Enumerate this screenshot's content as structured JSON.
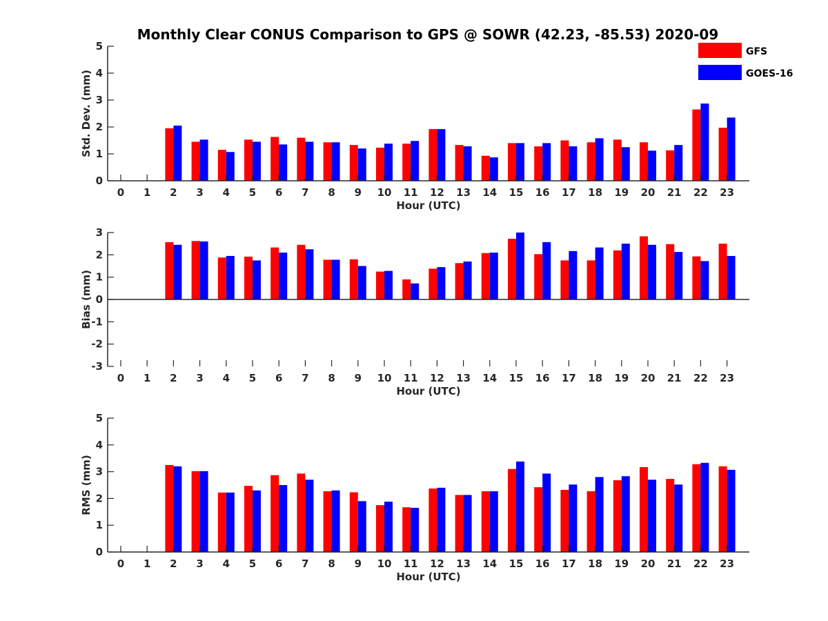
{
  "figure": {
    "title": "Monthly Clear CONUS Comparison to GPS @ SOWR (42.23, -85.53) 2020-09",
    "legend": [
      {
        "name": "GFS",
        "color": "#ff0000"
      },
      {
        "name": "GOES-16",
        "color": "#0000ff"
      }
    ]
  },
  "chart_data": [
    {
      "type": "bar",
      "xlabel": "Hour (UTC)",
      "ylabel": "Std. Dev. (mm)",
      "ylim": [
        0,
        5
      ],
      "yticks": [
        0,
        1,
        2,
        3,
        4,
        5
      ],
      "categories": [
        "0",
        "1",
        "2",
        "3",
        "4",
        "5",
        "6",
        "7",
        "8",
        "9",
        "10",
        "11",
        "12",
        "13",
        "14",
        "15",
        "16",
        "17",
        "18",
        "19",
        "20",
        "21",
        "22",
        "23"
      ],
      "series": [
        {
          "name": "GFS",
          "color": "#ff0000",
          "values": [
            null,
            null,
            1.95,
            1.45,
            1.15,
            1.53,
            1.63,
            1.6,
            1.43,
            1.33,
            1.23,
            1.38,
            1.92,
            1.33,
            0.93,
            1.4,
            1.28,
            1.5,
            1.43,
            1.53,
            1.43,
            1.13,
            2.65,
            1.97
          ]
        },
        {
          "name": "GOES-16",
          "color": "#0000ff",
          "values": [
            null,
            null,
            2.05,
            1.53,
            1.07,
            1.45,
            1.35,
            1.45,
            1.43,
            1.2,
            1.38,
            1.48,
            1.92,
            1.28,
            0.87,
            1.4,
            1.4,
            1.28,
            1.58,
            1.25,
            1.12,
            1.33,
            2.87,
            2.35
          ]
        }
      ],
      "grid": false
    },
    {
      "type": "bar",
      "xlabel": "Hour (UTC)",
      "ylabel": "Bias (mm)",
      "ylim": [
        -3,
        3
      ],
      "yticks": [
        -3,
        -2,
        -1,
        0,
        1,
        2,
        3
      ],
      "categories": [
        "0",
        "1",
        "2",
        "3",
        "4",
        "5",
        "6",
        "7",
        "8",
        "9",
        "10",
        "11",
        "12",
        "13",
        "14",
        "15",
        "16",
        "17",
        "18",
        "19",
        "20",
        "21",
        "22",
        "23"
      ],
      "series": [
        {
          "name": "GFS",
          "color": "#ff0000",
          "values": [
            null,
            null,
            2.57,
            2.62,
            1.88,
            1.92,
            2.33,
            2.45,
            1.78,
            1.8,
            1.25,
            0.9,
            1.38,
            1.63,
            2.08,
            2.72,
            2.03,
            1.75,
            1.75,
            2.2,
            2.83,
            2.48,
            1.93,
            2.5
          ]
        },
        {
          "name": "GOES-16",
          "color": "#0000ff",
          "values": [
            null,
            null,
            2.45,
            2.6,
            1.95,
            1.75,
            2.1,
            2.25,
            1.78,
            1.5,
            1.28,
            0.72,
            1.45,
            1.7,
            2.1,
            3.0,
            2.57,
            2.17,
            2.33,
            2.5,
            2.45,
            2.13,
            1.72,
            1.95
          ]
        }
      ],
      "grid": false
    },
    {
      "type": "bar",
      "xlabel": "Hour (UTC)",
      "ylabel": "RMS (mm)",
      "ylim": [
        0,
        5
      ],
      "yticks": [
        0,
        1,
        2,
        3,
        4,
        5
      ],
      "categories": [
        "0",
        "1",
        "2",
        "3",
        "4",
        "5",
        "6",
        "7",
        "8",
        "9",
        "10",
        "11",
        "12",
        "13",
        "14",
        "15",
        "16",
        "17",
        "18",
        "19",
        "20",
        "21",
        "22",
        "23"
      ],
      "series": [
        {
          "name": "GFS",
          "color": "#ff0000",
          "values": [
            null,
            null,
            3.25,
            3.02,
            2.22,
            2.47,
            2.87,
            2.93,
            2.27,
            2.23,
            1.75,
            1.67,
            2.37,
            2.13,
            2.27,
            3.1,
            2.42,
            2.32,
            2.27,
            2.68,
            3.17,
            2.73,
            3.28,
            3.2
          ]
        },
        {
          "name": "GOES-16",
          "color": "#0000ff",
          "values": [
            null,
            null,
            3.2,
            3.02,
            2.22,
            2.3,
            2.5,
            2.7,
            2.3,
            1.9,
            1.88,
            1.65,
            2.4,
            2.13,
            2.27,
            3.38,
            2.93,
            2.52,
            2.8,
            2.83,
            2.7,
            2.52,
            3.33,
            3.07
          ]
        }
      ],
      "grid": false
    }
  ]
}
